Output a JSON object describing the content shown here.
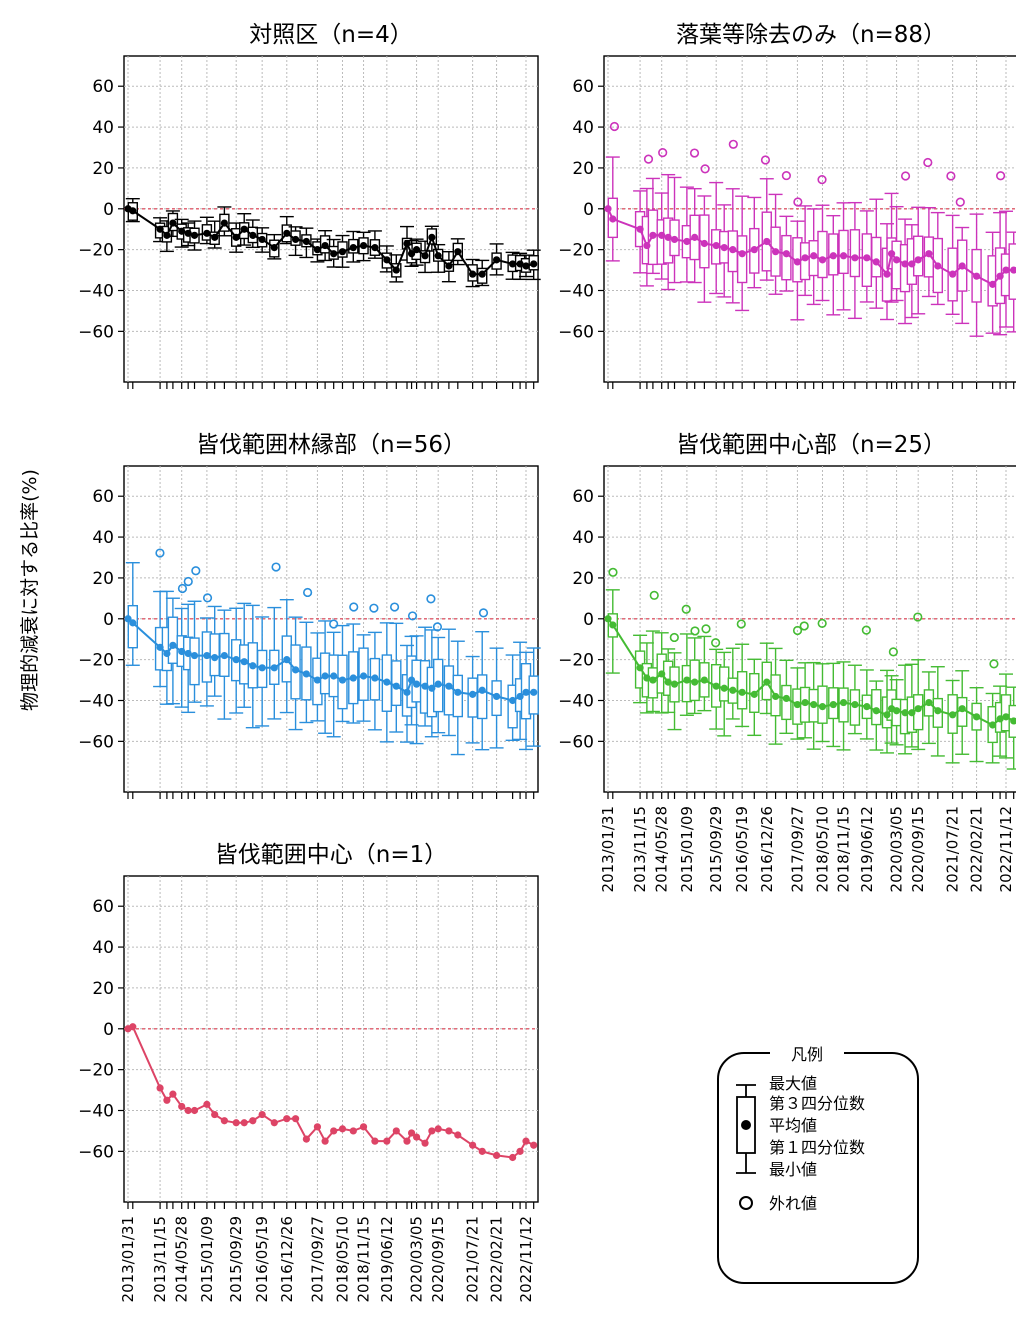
{
  "y_axis_label": "物理的減衰に対する比率(%)",
  "y_ticks": [
    60,
    40,
    20,
    0,
    -20,
    -40,
    -60
  ],
  "date_ticks": [
    "2013/01/31",
    "2013/11/15",
    "2014/05/28",
    "2015/01/09",
    "2015/09/29",
    "2016/05/19",
    "2016/12/26",
    "2017/09/27",
    "2018/05/10",
    "2018/11/15",
    "2019/06/12",
    "2020/03/05",
    "2020/09/15",
    "2021/07/21",
    "2022/02/21",
    "2022/11/12"
  ],
  "legend": {
    "title": "凡例",
    "max_label": "最大値",
    "q3_label": "第３四分位数",
    "mean_label": "平均値",
    "q1_label": "第１四分位数",
    "min_label": "最小値",
    "outlier_label": "外れ値"
  },
  "chart_data": [
    {
      "type": "boxplot",
      "title": "対照区（n=4）",
      "color": "#000000",
      "ylim": [
        -75,
        65
      ],
      "reference_line": 0,
      "grid": true,
      "x": [
        "2013/01/31",
        "2013/03/15",
        "2013/11/15",
        "2014/01/15",
        "2014/03/10",
        "2014/05/28",
        "2014/07/25",
        "2014/09/20",
        "2015/01/09",
        "2015/03/20",
        "2015/06/15",
        "2015/09/29",
        "2015/12/10",
        "2016/02/25",
        "2016/05/19",
        "2016/09/05",
        "2016/12/26",
        "2017/03/15",
        "2017/06/20",
        "2017/09/27",
        "2017/12/05",
        "2018/02/20",
        "2018/05/10",
        "2018/08/15",
        "2018/11/15",
        "2019/02/25",
        "2019/06/12",
        "2019/09/05",
        "2019/12/10",
        "2020/01/20",
        "2020/03/05",
        "2020/05/20",
        "2020/07/20",
        "2020/09/15",
        "2020/12/20",
        "2021/03/10",
        "2021/07/21",
        "2021/10/15",
        "2022/02/21",
        "2022/07/15",
        "2022/09/20",
        "2022/11/12",
        "2023/01/20"
      ],
      "mean": [
        0,
        -1,
        -10,
        -13,
        -7,
        -11,
        -12,
        -13,
        -12,
        -14,
        -7,
        -14,
        -10,
        -13,
        -15,
        -19,
        -12,
        -15,
        -16,
        -20,
        -18,
        -22,
        -21,
        -19,
        -18,
        -19,
        -25,
        -30,
        -17,
        -22,
        -20,
        -23,
        -14,
        -23,
        -28,
        -21,
        -32,
        -32,
        -25,
        -27,
        -27,
        -28,
        -27
      ]
    },
    {
      "type": "boxplot",
      "title": "落葉等除去のみ（n=88）",
      "color": "#cc33bb",
      "ylim": [
        -75,
        65
      ],
      "reference_line": 0,
      "grid": true,
      "x": [
        "2013/01/31",
        "2013/03/15",
        "2013/11/15",
        "2014/01/15",
        "2014/03/10",
        "2014/05/28",
        "2014/07/25",
        "2014/09/20",
        "2015/01/09",
        "2015/03/20",
        "2015/06/15",
        "2015/09/29",
        "2015/12/10",
        "2016/02/25",
        "2016/05/19",
        "2016/09/05",
        "2016/12/26",
        "2017/03/15",
        "2017/06/20",
        "2017/09/27",
        "2017/12/05",
        "2018/02/20",
        "2018/05/10",
        "2018/08/15",
        "2018/11/15",
        "2019/02/25",
        "2019/06/12",
        "2019/09/05",
        "2019/12/10",
        "2020/01/20",
        "2020/03/05",
        "2020/05/20",
        "2020/07/20",
        "2020/09/15",
        "2020/12/20",
        "2021/03/10",
        "2021/07/21",
        "2021/10/15",
        "2022/02/21",
        "2022/07/15",
        "2022/09/20",
        "2022/11/12",
        "2023/01/20"
      ],
      "mean": [
        0,
        -5,
        -10,
        -18,
        -13,
        -13,
        -14,
        -15,
        -16,
        -14,
        -17,
        -18,
        -19,
        -20,
        -22,
        -20,
        -16,
        -21,
        -22,
        -26,
        -24,
        -23,
        -25,
        -23,
        -23,
        -24,
        -24,
        -26,
        -32,
        -22,
        -25,
        -27,
        -27,
        -25,
        -22,
        -28,
        -32,
        -28,
        -33,
        -37,
        -33,
        -30,
        -30
      ]
    },
    {
      "type": "boxplot",
      "title": "皆伐範囲林縁部（n=56）",
      "color": "#2a8fdc",
      "ylim": [
        -75,
        65
      ],
      "reference_line": 0,
      "grid": true,
      "x": [
        "2013/01/31",
        "2013/03/15",
        "2013/11/15",
        "2014/01/15",
        "2014/03/10",
        "2014/05/28",
        "2014/07/25",
        "2014/09/20",
        "2015/01/09",
        "2015/03/20",
        "2015/06/15",
        "2015/09/29",
        "2015/12/10",
        "2016/02/25",
        "2016/05/19",
        "2016/09/05",
        "2016/12/26",
        "2017/03/15",
        "2017/06/20",
        "2017/09/27",
        "2017/12/05",
        "2018/02/20",
        "2018/05/10",
        "2018/08/15",
        "2018/11/15",
        "2019/02/25",
        "2019/06/12",
        "2019/09/05",
        "2019/12/10",
        "2020/01/20",
        "2020/03/05",
        "2020/05/20",
        "2020/07/20",
        "2020/09/15",
        "2020/12/20",
        "2021/03/10",
        "2021/07/21",
        "2021/10/15",
        "2022/02/21",
        "2022/07/15",
        "2022/09/20",
        "2022/11/12",
        "2023/01/20"
      ],
      "mean": [
        0,
        -2,
        -14,
        -17,
        -13,
        -16,
        -17,
        -18,
        -18,
        -19,
        -18,
        -20,
        -21,
        -23,
        -24,
        -24,
        -20,
        -25,
        -27,
        -30,
        -28,
        -28,
        -30,
        -29,
        -28,
        -29,
        -31,
        -33,
        -36,
        -30,
        -32,
        -33,
        -34,
        -32,
        -33,
        -36,
        -37,
        -35,
        -38,
        -40,
        -38,
        -36,
        -36
      ]
    },
    {
      "type": "boxplot",
      "title": "皆伐範囲中心部（n=25）",
      "color": "#44bb33",
      "ylim": [
        -75,
        65
      ],
      "reference_line": 0,
      "grid": true,
      "x": [
        "2013/01/31",
        "2013/03/15",
        "2013/11/15",
        "2014/01/15",
        "2014/03/10",
        "2014/05/28",
        "2014/07/25",
        "2014/09/20",
        "2015/01/09",
        "2015/03/20",
        "2015/06/15",
        "2015/09/29",
        "2015/12/10",
        "2016/02/25",
        "2016/05/19",
        "2016/09/05",
        "2016/12/26",
        "2017/03/15",
        "2017/06/20",
        "2017/09/27",
        "2017/12/05",
        "2018/02/20",
        "2018/05/10",
        "2018/08/15",
        "2018/11/15",
        "2019/02/25",
        "2019/06/12",
        "2019/09/05",
        "2019/12/10",
        "2020/01/20",
        "2020/03/05",
        "2020/05/20",
        "2020/07/20",
        "2020/09/15",
        "2020/12/20",
        "2021/03/10",
        "2021/07/21",
        "2021/10/15",
        "2022/02/21",
        "2022/07/15",
        "2022/09/20",
        "2022/11/12",
        "2023/01/20"
      ],
      "mean": [
        0,
        -3,
        -24,
        -29,
        -30,
        -27,
        -31,
        -32,
        -30,
        -31,
        -30,
        -33,
        -34,
        -35,
        -36,
        -37,
        -31,
        -38,
        -39,
        -42,
        -41,
        -42,
        -43,
        -42,
        -41,
        -42,
        -43,
        -45,
        -47,
        -44,
        -45,
        -46,
        -46,
        -44,
        -41,
        -45,
        -47,
        -44,
        -48,
        -52,
        -49,
        -48,
        -50
      ]
    },
    {
      "type": "line",
      "title": "皆伐範囲中心（n=1）",
      "color": "#dd4466",
      "ylim": [
        -75,
        65
      ],
      "reference_line": 0,
      "grid": true,
      "x": [
        "2013/01/31",
        "2013/03/15",
        "2013/11/15",
        "2014/01/15",
        "2014/03/10",
        "2014/05/28",
        "2014/07/25",
        "2014/09/20",
        "2015/01/09",
        "2015/03/20",
        "2015/06/15",
        "2015/09/29",
        "2015/12/10",
        "2016/02/25",
        "2016/05/19",
        "2016/09/05",
        "2016/12/26",
        "2017/03/15",
        "2017/06/20",
        "2017/09/27",
        "2017/12/05",
        "2018/02/20",
        "2018/05/10",
        "2018/08/15",
        "2018/11/15",
        "2019/02/25",
        "2019/06/12",
        "2019/09/05",
        "2019/12/10",
        "2020/01/20",
        "2020/03/05",
        "2020/05/20",
        "2020/07/20",
        "2020/09/15",
        "2020/12/20",
        "2021/03/10",
        "2021/07/21",
        "2021/10/15",
        "2022/02/21",
        "2022/07/15",
        "2022/09/20",
        "2022/11/12",
        "2023/01/20"
      ],
      "values": [
        0,
        1,
        -29,
        -35,
        -32,
        -38,
        -40,
        -40,
        -37,
        -42,
        -45,
        -46,
        -46,
        -45,
        -42,
        -46,
        -44,
        -44,
        -54,
        -48,
        -55,
        -50,
        -49,
        -50,
        -48,
        -55,
        -55,
        -50,
        -55,
        -51,
        -53,
        -56,
        -50,
        -49,
        -50,
        -52,
        -57,
        -60,
        -62,
        -63,
        -60,
        -55,
        -57
      ]
    }
  ]
}
